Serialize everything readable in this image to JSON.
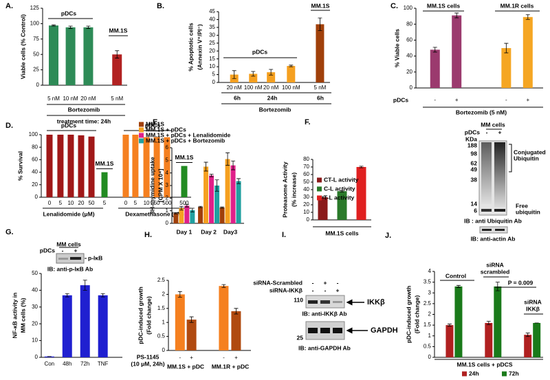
{
  "chart_data": [
    {
      "type": "bar",
      "panel": "A.",
      "ylabel": [
        "Viable cells (% Control)"
      ],
      "ylim": [
        0,
        125
      ],
      "yticks": [
        0,
        25,
        50,
        75,
        100,
        125
      ],
      "categories": [
        "5 nM",
        "10 nM",
        "20 nM",
        "5 nM"
      ],
      "values": [
        97,
        94,
        94,
        50
      ],
      "errors": [
        1,
        2,
        2,
        6
      ],
      "colors": [
        "#2e8b57",
        "#2e8b57",
        "#2e8b57",
        "#b22222"
      ],
      "annotations": [
        "pDCs",
        "MM.1S",
        "Bortezomib",
        "treatment time: 24h"
      ]
    },
    {
      "type": "bar",
      "panel": "B.",
      "ylabel": [
        "% Apoptotic cells",
        "(Annexin V⁺/PI⁻)"
      ],
      "ylim": [
        0,
        45
      ],
      "yticks": [
        0,
        5,
        10,
        15,
        20,
        25,
        30,
        35,
        40,
        45
      ],
      "categories": [
        "20 nM",
        "100 nM",
        "20 nM",
        "100 nM",
        "5 nM"
      ],
      "values": [
        5,
        5.5,
        6.5,
        10.5,
        37
      ],
      "errors": [
        2.5,
        1.5,
        1.8,
        0.5,
        4
      ],
      "colors": [
        "#f5a020",
        "#f5a020",
        "#f5a020",
        "#f5a020",
        "#a0400a"
      ],
      "annotations": [
        "pDCs",
        "MM.1S",
        "6h",
        "24h",
        "6h",
        "Bortezomib"
      ]
    },
    {
      "type": "bar",
      "panel": "C.",
      "ylabel": [
        "% Viable cells"
      ],
      "ylim": [
        0,
        100
      ],
      "yticks": [
        0,
        20,
        40,
        60,
        80,
        100
      ],
      "categories": [
        "-",
        "+",
        "-",
        "+"
      ],
      "values": [
        48,
        91,
        50,
        89
      ],
      "errors": [
        3,
        3,
        6,
        3
      ],
      "colors": [
        "#9b3a6e",
        "#9b3a6e",
        "#f5a623",
        "#f5a623"
      ],
      "annotations": [
        "pDCs",
        "MM.1S cells",
        "MM.1R cells",
        "Bortezomib (5 nM)"
      ]
    },
    {
      "type": "bar",
      "panel": "D.",
      "ylabel": [
        "% Survival"
      ],
      "ylim": [
        0,
        100
      ],
      "yticks": [
        0,
        20,
        40,
        60,
        80,
        100
      ],
      "categories": [
        "0",
        "5",
        "10",
        "20",
        "50",
        "5",
        "0",
        "5",
        "10",
        "50",
        "500",
        "500"
      ],
      "values": [
        100,
        100,
        100,
        99,
        97,
        40,
        100,
        100,
        96,
        96,
        96,
        50
      ],
      "colors": [
        "#a01818",
        "#a01818",
        "#a01818",
        "#a01818",
        "#a01818",
        "#228b22",
        "#f58020",
        "#f58020",
        "#f58020",
        "#f58020",
        "#f58020",
        "#228b22"
      ],
      "annotations": [
        "pDCs",
        "MM.1S",
        "pDCs",
        "MM.1S",
        "Lenalidomide (μM)",
        "Dexamethasone (nM)"
      ]
    },
    {
      "type": "bar",
      "panel": "E.",
      "ylabel": [
        "3H-thymidine uptake",
        "[CPM X 10⁴]"
      ],
      "ylim": [
        0,
        6
      ],
      "yticks": [
        0,
        1,
        2,
        3,
        4,
        5,
        6
      ],
      "categories": [
        "Day 1",
        "Day 2",
        "Day3"
      ],
      "legend": "above",
      "series": [
        {
          "name": "MM.1S",
          "color": "#a0400a",
          "values": [
            0.8,
            1.3,
            1.25
          ],
          "errors": [
            0.05,
            0.05,
            0.05
          ]
        },
        {
          "name": "MM.1S + pDCs",
          "color": "#f5a020",
          "values": [
            1.2,
            4.5,
            5.1
          ],
          "errors": [
            0.15,
            0.35,
            0.5
          ]
        },
        {
          "name": "MM.1S + pDCs + Lenalidomide",
          "color": "#e0208a",
          "values": [
            1.4,
            3.8,
            4.6
          ],
          "errors": [
            0.1,
            0.1,
            0.35
          ]
        },
        {
          "name": "MM.1S + pDCs + Bortezomib",
          "color": "#20a0a0",
          "values": [
            1.05,
            3.0,
            3.35
          ],
          "errors": [
            0.15,
            0.45,
            0.2
          ]
        }
      ]
    },
    {
      "type": "bar",
      "panel": "F.",
      "ylabel": [
        "Proteasome Activity",
        "(% increase)"
      ],
      "ylim": [
        0,
        80
      ],
      "yticks": [
        0,
        10,
        20,
        30,
        40,
        50,
        60,
        70,
        80
      ],
      "categories": [
        "MM.1S cells"
      ],
      "legend": "upper left",
      "series": [
        {
          "name": "CT-L activity",
          "color": "#8b1a1a",
          "values": [
            30
          ],
          "errors": [
            1
          ]
        },
        {
          "name": "C-L activity",
          "color": "#2a7a2a",
          "values": [
            38
          ],
          "errors": [
            1
          ]
        },
        {
          "name": "T-L activity",
          "color": "#e02020",
          "values": [
            70
          ],
          "errors": [
            1
          ]
        }
      ]
    },
    {
      "type": "bar",
      "panel": "G.",
      "ylabel": [
        "NF-κB activity in",
        "MM cells (%)"
      ],
      "ylim": [
        0,
        50
      ],
      "yticks": [
        0,
        10,
        20,
        30,
        40,
        50
      ],
      "categories": [
        "Con",
        "48h",
        "72h",
        "TNF"
      ],
      "values": [
        0.5,
        37,
        43,
        37
      ],
      "errors": [
        0,
        1,
        3,
        1
      ],
      "colors": [
        "#2020d0",
        "#2020d0",
        "#2020d0",
        "#2020d0"
      ]
    },
    {
      "type": "bar",
      "panel": "H.",
      "ylabel": [
        "pDC-induced growth",
        "(Fold change)"
      ],
      "ylim": [
        0,
        2.5
      ],
      "yticks": [
        0,
        0.5,
        1,
        1.5,
        2,
        2.5
      ],
      "categories": [
        "-",
        "+",
        "-",
        "+"
      ],
      "values": [
        2.0,
        1.1,
        2.3,
        1.4
      ],
      "errors": [
        0.1,
        0.1,
        0.05,
        0.1
      ],
      "colors": [
        "#f58020",
        "#b04a10",
        "#f58020",
        "#b04a10"
      ],
      "annotations": [
        "PS-1145",
        "(10 μM, 24h)",
        "MM.1S + pDC",
        "MM.1R + pDC"
      ]
    },
    {
      "type": "bar",
      "panel": "J.",
      "ylabel": [
        "pDC-induced growth",
        "(Fold change)"
      ],
      "ylim": [
        0,
        4
      ],
      "yticks": [
        0,
        0.5,
        1,
        1.5,
        2,
        2.5,
        3,
        3.5,
        4
      ],
      "categories": [
        null,
        null,
        null
      ],
      "legend": "below",
      "series": [
        {
          "name": "24h",
          "color": "#b02020",
          "values": [
            1.5,
            1.6,
            1.05
          ],
          "errors": [
            0.05,
            0.08,
            0.08
          ]
        },
        {
          "name": "72h",
          "color": "#1a7a1a",
          "values": [
            3.3,
            3.3,
            1.6
          ],
          "errors": [
            0.05,
            0.2,
            0
          ]
        }
      ],
      "annotations": [
        "Control",
        "siRNA",
        "scrambled",
        "P = 0.009",
        "siRNA",
        "IKKβ",
        "MM.1S cells + pDCS"
      ]
    }
  ],
  "blots": {
    "F": {
      "labels": [
        "MM cells",
        "pDCs",
        "-",
        "+",
        "KDa",
        "188",
        "98",
        "62",
        "49",
        "38",
        "14",
        "6",
        "Conjugated",
        "Ubiquitin",
        "Free",
        "ubiquitin",
        "IB : anti Ubiquitin Ab",
        "IB: anti-actin Ab"
      ]
    },
    "G": {
      "labels": [
        "MM cells",
        "pDCs",
        "-",
        "+",
        "p-IκB",
        "IB: anti-p-IκB Ab"
      ]
    },
    "I": {
      "panel": "I.",
      "labels": [
        "siRNA-Scrambled",
        "siRNA-IKKβ",
        "-",
        "+",
        "-",
        "-",
        "-",
        "+",
        "110",
        "IKKβ",
        "IB: anti-IKKβ Ab",
        "25",
        "GAPDH",
        "IB: anti-GAPDH Ab"
      ]
    }
  }
}
